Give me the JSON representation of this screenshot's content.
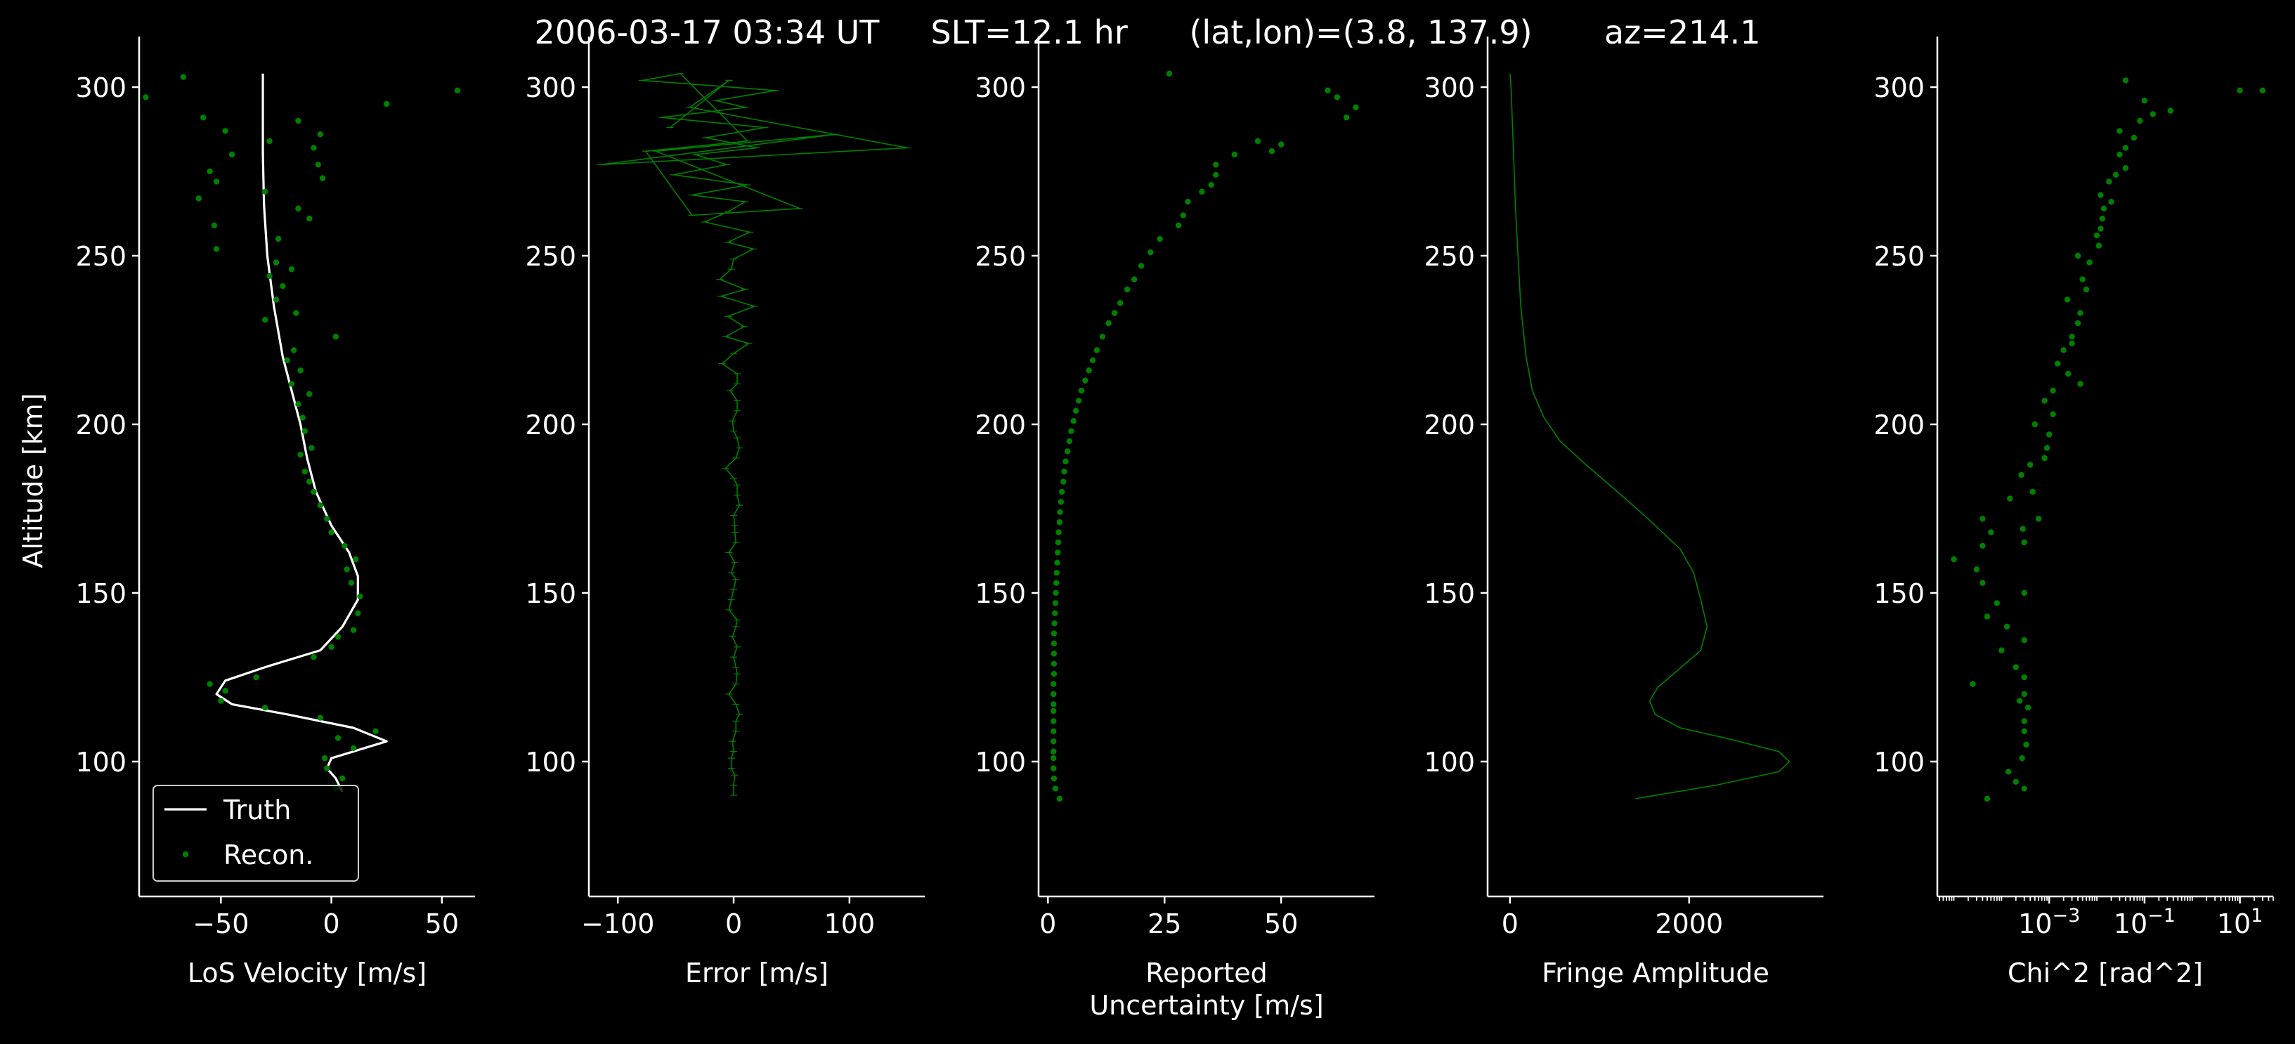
{
  "figure": {
    "title": "2006-03-17 03:34 UT     SLT=12.1 hr      (lat,lon)=(3.8, 137.9)       az=214.1",
    "background": "#000000",
    "foreground": "#ffffff",
    "data_color": "#008000",
    "truth_color": "#ffffff"
  },
  "chart_data": [
    {
      "type": "line",
      "xlabel": "LoS Velocity [m/s]",
      "ylabel": "Altitude [km]",
      "xlim": [
        -87,
        65
      ],
      "ylim": [
        60,
        315
      ],
      "xticks": [
        -50,
        0,
        50
      ],
      "xtick_labels": [
        "−50",
        "0",
        "50"
      ],
      "yticks": [
        100,
        150,
        200,
        250,
        300
      ],
      "ytick_labels": [
        "100",
        "150",
        "200",
        "250",
        "300"
      ],
      "legend": {
        "placement": "lower-left",
        "entries": [
          "Truth",
          "Recon."
        ]
      },
      "series": [
        {
          "name": "Truth",
          "style": "line",
          "x": [
            5,
            2,
            -2,
            0,
            25,
            10,
            -20,
            -45,
            -52,
            -48,
            -30,
            -5,
            5,
            12,
            12,
            8,
            0,
            -7,
            -11,
            -14,
            -18,
            -22,
            -26,
            -29,
            -30.5,
            -31,
            -31,
            -31
          ],
          "y": [
            91,
            95,
            98,
            101,
            106,
            110,
            114,
            117,
            120,
            124,
            128,
            133,
            140,
            148,
            155,
            162,
            170,
            180,
            190,
            200,
            210,
            220,
            235,
            250,
            265,
            280,
            295,
            304
          ]
        },
        {
          "name": "Recon.",
          "style": "scatter",
          "x": [
            2,
            5,
            -2,
            -3,
            10,
            3,
            20,
            -5,
            -30,
            -50,
            -48,
            -55,
            -34,
            -8,
            0,
            3,
            10,
            12,
            13,
            9,
            7,
            11,
            6,
            0,
            -2,
            -5,
            -8,
            -10,
            -12,
            -14,
            -9,
            -12,
            -13,
            -15,
            -10,
            -18,
            -14,
            -20,
            -17,
            2,
            -30,
            -16,
            -25,
            -22,
            -28,
            -18,
            -25,
            -52,
            -24,
            -53,
            -10,
            -15,
            -60,
            -30,
            -52,
            -4,
            -55,
            -6,
            -45,
            -8,
            -28,
            -5,
            -48,
            -15,
            -58,
            25,
            -84,
            57,
            -67
          ],
          "y": [
            92,
            95,
            98,
            101,
            104,
            107,
            109,
            113,
            116,
            118,
            121,
            123,
            125,
            131,
            134,
            137,
            139,
            144,
            149,
            153,
            157,
            160,
            164,
            168,
            172,
            176,
            180,
            183,
            186,
            191,
            193,
            198,
            202,
            206,
            209,
            212,
            216,
            219,
            222,
            226,
            231,
            233,
            237,
            241,
            244,
            246,
            248,
            252,
            255,
            259,
            261,
            264,
            267,
            269,
            272,
            273,
            275,
            277,
            280,
            282,
            284,
            286,
            287,
            290,
            291,
            295,
            297,
            299,
            303
          ]
        }
      ]
    },
    {
      "type": "line",
      "xlabel": "Error [m/s]",
      "ylabel": "",
      "xlim": [
        -125,
        165
      ],
      "ylim": [
        60,
        315
      ],
      "xticks": [
        -100,
        0,
        100
      ],
      "xtick_labels": [
        "−100",
        "0",
        "100"
      ],
      "yticks": [
        100,
        150,
        200,
        250,
        300
      ],
      "ytick_labels": [
        "100",
        "150",
        "200",
        "250",
        "300"
      ],
      "series": [
        {
          "name": "",
          "style": "line",
          "x": [
            0,
            0,
            1,
            -2,
            -2,
            0,
            -1,
            2,
            2,
            5,
            2,
            -4,
            2,
            3,
            2,
            0,
            3,
            -1,
            2,
            3,
            -4,
            -2,
            0,
            2,
            -2,
            1,
            -4,
            2,
            1,
            1,
            0,
            5,
            3,
            3,
            0,
            -7,
            2,
            5,
            3,
            0,
            -1,
            3,
            3,
            -3,
            3,
            3,
            -10,
            0,
            13,
            -7,
            9,
            -5,
            18,
            -11,
            10,
            -12,
            -2,
            0,
            17,
            -5,
            14,
            -25,
            -5,
            10,
            -36,
            12,
            -52,
            -6,
            -33,
            20,
            -24,
            27,
            -62,
            10,
            -15,
            36,
            -79,
            -46,
            12,
            -76,
            -36,
            57,
            -67,
            88,
            -115,
            150,
            -38,
            -4,
            -55
          ],
          "y": [
            90,
            93,
            96,
            98,
            101,
            103,
            106,
            109,
            112,
            114,
            117,
            120,
            123,
            126,
            128,
            131,
            134,
            137,
            140,
            142,
            145,
            148,
            151,
            154,
            156,
            159,
            162,
            165,
            168,
            170,
            173,
            176,
            179,
            182,
            184,
            187,
            190,
            193,
            196,
            198,
            201,
            204,
            207,
            210,
            212,
            215,
            218,
            221,
            224,
            226,
            229,
            232,
            235,
            238,
            240,
            243,
            246,
            249,
            252,
            254,
            257,
            260,
            263,
            266,
            268,
            271,
            274,
            277,
            280,
            282,
            285,
            288,
            291,
            294,
            296,
            299,
            302,
            304,
            284,
            281,
            262,
            264,
            281,
            286,
            277,
            282,
            294,
            302,
            288
          ]
        }
      ]
    },
    {
      "type": "scatter",
      "xlabel": "Reported\nUncertainty [m/s]",
      "ylabel": "",
      "xlim": [
        -2,
        70
      ],
      "ylim": [
        60,
        315
      ],
      "xticks": [
        0,
        25,
        50
      ],
      "xtick_labels": [
        "0",
        "25",
        "50"
      ],
      "yticks": [
        100,
        150,
        200,
        250,
        300
      ],
      "ytick_labels": [
        "100",
        "150",
        "200",
        "250",
        "300"
      ],
      "series": [
        {
          "name": "",
          "style": "scatter",
          "x": [
            2.5,
            1.6,
            1.3,
            1.2,
            1.2,
            1.2,
            1.2,
            1.2,
            1.2,
            1.2,
            1.2,
            1.2,
            1.2,
            1.3,
            1.3,
            1.3,
            1.3,
            1.3,
            1.4,
            1.5,
            1.6,
            1.7,
            1.8,
            1.9,
            2,
            2.1,
            2.2,
            2.3,
            2.5,
            2.6,
            2.8,
            3,
            3.3,
            3.5,
            3.8,
            4.2,
            4.6,
            5,
            5.5,
            6,
            6.6,
            7.2,
            8,
            8.8,
            9.6,
            10.5,
            11.7,
            13,
            14.3,
            15.5,
            17,
            18.5,
            20,
            22,
            24,
            28,
            29,
            30,
            33,
            35,
            36,
            36,
            40,
            45,
            48,
            50,
            60,
            62,
            66,
            64,
            26
          ],
          "y": [
            89,
            92,
            95,
            98,
            101,
            103,
            106,
            109,
            112,
            115,
            117,
            120,
            123,
            126,
            129,
            132,
            135,
            138,
            141,
            144,
            147,
            150,
            153,
            156,
            159,
            162,
            165,
            168,
            171,
            174,
            177,
            180,
            183,
            186,
            189,
            192,
            195,
            198,
            201,
            204,
            207,
            210,
            213,
            216,
            219,
            222,
            226,
            230,
            233,
            236,
            240,
            243,
            247,
            251,
            255,
            259,
            262,
            266,
            269,
            271,
            274,
            277,
            280,
            284,
            281,
            283,
            299,
            297,
            294,
            291,
            304
          ]
        }
      ]
    },
    {
      "type": "line",
      "xlabel": "Fringe Amplitude",
      "ylabel": "",
      "xlim": [
        -250,
        3500
      ],
      "ylim": [
        60,
        315
      ],
      "xticks": [
        0,
        2000
      ],
      "xtick_labels": [
        "0",
        "2000"
      ],
      "yticks": [
        100,
        150,
        200,
        250,
        300
      ],
      "ytick_labels": [
        "100",
        "150",
        "200",
        "250",
        "300"
      ],
      "series": [
        {
          "name": "",
          "style": "line",
          "x": [
            1400,
            2300,
            3000,
            3120,
            3000,
            2400,
            1900,
            1620,
            1560,
            1650,
            1870,
            2130,
            2200,
            2130,
            2050,
            1900,
            1700,
            1500,
            1200,
            850,
            560,
            380,
            250,
            180,
            120,
            90,
            60,
            40,
            25,
            15,
            0
          ],
          "y": [
            89,
            93,
            97,
            100,
            103,
            107,
            110,
            114,
            118,
            122,
            127,
            133,
            140,
            148,
            156,
            163,
            168,
            173,
            180,
            188,
            195,
            202,
            210,
            220,
            235,
            250,
            265,
            280,
            290,
            298,
            304
          ]
        }
      ]
    },
    {
      "type": "scatter",
      "xlabel": "Chi^2 [rad^2]",
      "ylabel": "",
      "xscale": "log",
      "xlim": [
        4.5e-06,
        50
      ],
      "ylim": [
        60,
        315
      ],
      "xticks": [
        0.001,
        0.1,
        10
      ],
      "xtick_labels": [
        "10",
        "10",
        "10"
      ],
      "xtick_exponents": [
        "−3",
        "−1",
        "1"
      ],
      "yticks": [
        100,
        150,
        200,
        250,
        300
      ],
      "ytick_labels": [
        "100",
        "150",
        "200",
        "250",
        "300"
      ],
      "series": [
        {
          "name": "",
          "style": "scatter",
          "x": [
            5e-05,
            0.0003,
            0.0002,
            0.00014,
            0.00027,
            0.00033,
            0.0003,
            0.0003,
            0.00036,
            0.00024,
            0.0003,
            2.5e-05,
            0.0003,
            0.0002,
            0.0001,
            0.0003,
            0.00013,
            5e-05,
            8e-05,
            0.0003,
            4e-05,
            3e-05,
            1e-05,
            4e-05,
            0.0003,
            6e-05,
            0.00028,
            4e-05,
            0.0006,
            0.00015,
            0.00045,
            0.00026,
            0.0004,
            0.0008,
            0.0009,
            0.001,
            0.0005,
            0.0012,
            0.0008,
            0.0012,
            0.0045,
            0.0025,
            0.0015,
            0.002,
            0.003,
            0.003,
            0.004,
            0.0045,
            0.0024,
            0.006,
            0.005,
            0.007,
            0.004,
            0.011,
            0.01,
            0.012,
            0.013,
            0.014,
            0.02,
            0.012,
            0.018,
            0.025,
            0.04,
            0.03,
            0.04,
            0.06,
            0.03,
            0.08,
            0.15,
            0.35,
            0.1,
            10,
            30,
            0.04
          ],
          "y": [
            89,
            92,
            94,
            97,
            101,
            105,
            109,
            112,
            116,
            118,
            120,
            123,
            125,
            128,
            133,
            136,
            140,
            143,
            147,
            150,
            153,
            157,
            160,
            164,
            165,
            168,
            169,
            172,
            172,
            178,
            180,
            185,
            188,
            190,
            193,
            197,
            200,
            203,
            207,
            210,
            212,
            215,
            218,
            222,
            224,
            226,
            230,
            233,
            237,
            240,
            243,
            248,
            250,
            253,
            256,
            258,
            261,
            264,
            266,
            268,
            272,
            274,
            276,
            280,
            282,
            285,
            287,
            290,
            292,
            293,
            296,
            299,
            299,
            302
          ]
        }
      ]
    }
  ]
}
